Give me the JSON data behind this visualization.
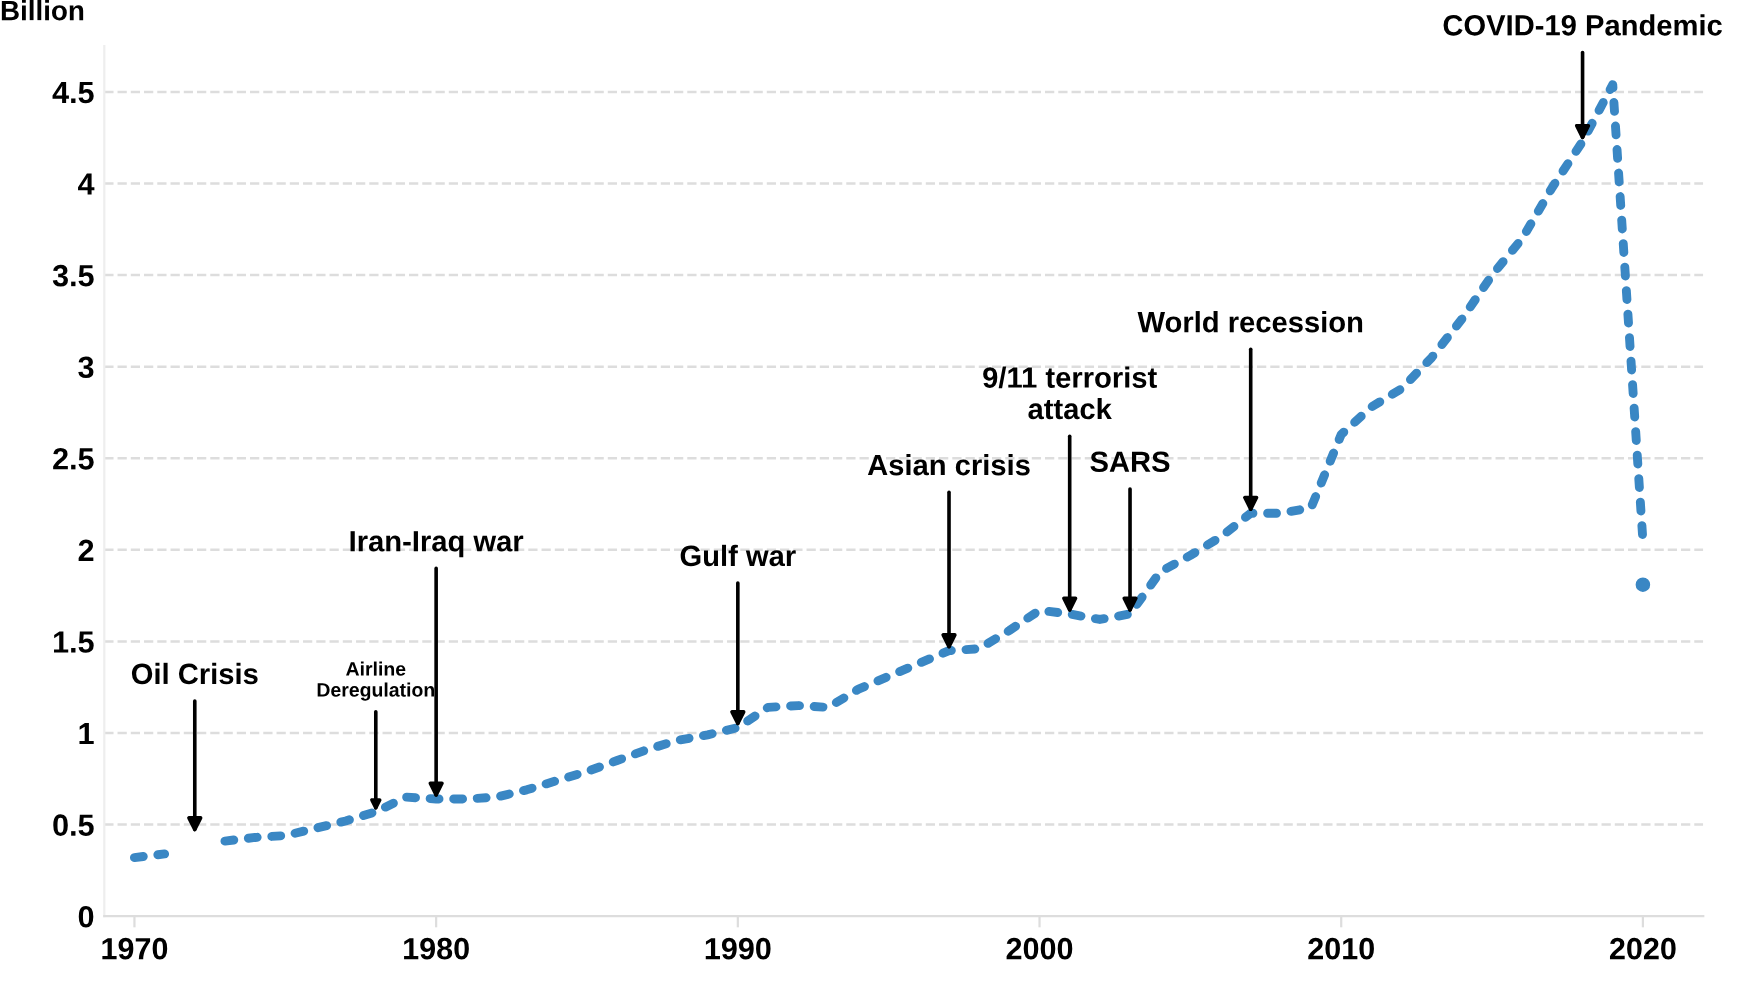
{
  "chart_data": {
    "type": "line",
    "ylabel": "Billion",
    "x": [
      1970,
      1971,
      1972,
      1973,
      1974,
      1975,
      1976,
      1977,
      1978,
      1979,
      1980,
      1981,
      1982,
      1983,
      1984,
      1985,
      1986,
      1987,
      1988,
      1989,
      1990,
      1991,
      1992,
      1993,
      1994,
      1995,
      1996,
      1997,
      1998,
      1999,
      2000,
      2001,
      2002,
      2003,
      2004,
      2005,
      2006,
      2007,
      2008,
      2009,
      2010,
      2011,
      2012,
      2013,
      2014,
      2015,
      2016,
      2017,
      2018,
      2019,
      2020
    ],
    "series": [
      {
        "color": "#3a87c4",
        "line_style": "dotted",
        "values": [
          0.32,
          0.34,
          null,
          0.41,
          0.43,
          0.44,
          0.48,
          0.52,
          0.57,
          0.65,
          0.64,
          0.64,
          0.65,
          0.69,
          0.74,
          0.79,
          0.85,
          0.91,
          0.96,
          0.99,
          1.03,
          1.14,
          1.15,
          1.14,
          1.24,
          1.31,
          1.38,
          1.45,
          1.46,
          1.56,
          1.67,
          1.65,
          1.62,
          1.65,
          1.88,
          1.97,
          2.07,
          2.2,
          2.2,
          2.23,
          2.63,
          2.78,
          2.88,
          3.05,
          3.26,
          3.5,
          3.7,
          3.98,
          4.23,
          4.54,
          2.05
        ]
      },
      {
        "type": "scatter",
        "color": "#3a87c4",
        "marker": "circle",
        "x": [
          2020
        ],
        "values": [
          1.81
        ]
      }
    ],
    "annotations": [
      "Oil Crisis",
      {
        "text": "Airline\nDeregulation",
        "x": 1978,
        "y": 0.57
      },
      {
        "text": "Iran-Iraq war",
        "x": 1980,
        "y": 0.64
      },
      {
        "text": "Gulf war",
        "x": 1990,
        "y": 1.03
      },
      {
        "text": "Asian crisis",
        "x": 1997,
        "y": 1.45
      },
      {
        "text": "9/11 terrorist\nattack",
        "x": 2001,
        "y": 1.65
      },
      {
        "text": "SARS",
        "x": 2003,
        "y": 1.65
      },
      {
        "text": "World recession",
        "x": 2007,
        "y": 2.2
      },
      {
        "text": "COVID-19 Pandemic",
        "x": 2018,
        "y": 4.23
      }
    ],
    "xlim": [
      1969,
      2022
    ],
    "ylim": [
      0,
      4.75
    ],
    "xticks": [
      1970,
      1980,
      1990,
      2000,
      2010,
      2020
    ],
    "yticks": [
      0,
      0.5,
      1,
      1.5,
      2,
      2.5,
      3,
      3.5,
      4,
      4.5
    ],
    "grid": "y",
    "legend": false
  }
}
